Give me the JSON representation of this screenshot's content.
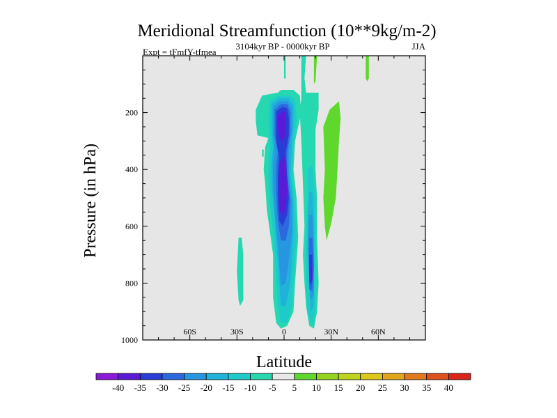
{
  "chart_data": {
    "type": "heatmap",
    "title": "Meridional Streamfunction (10**9kg/m-2)",
    "left_label": "Expt = tFmfY-tfmea",
    "center_label": "3104kyr BP - 0000kyr BP",
    "right_label": "JJA",
    "xlabel": "Latitude",
    "ylabel": "Pressure (in hPa)",
    "x_range": [
      -90,
      90
    ],
    "y_range": [
      0,
      1000
    ],
    "y_inverted": true,
    "x_ticks": [
      {
        "value": -60,
        "label": "60S"
      },
      {
        "value": -30,
        "label": "30S"
      },
      {
        "value": 0,
        "label": "0"
      },
      {
        "value": 30,
        "label": "30N"
      },
      {
        "value": 60,
        "label": "60N"
      }
    ],
    "y_ticks": [
      {
        "value": 200,
        "label": "200"
      },
      {
        "value": 400,
        "label": "400"
      },
      {
        "value": 600,
        "label": "600"
      },
      {
        "value": 800,
        "label": "800"
      },
      {
        "value": 1000,
        "label": "1000"
      }
    ],
    "background_color": "#e6e6e6",
    "regions": [
      {
        "level": "-5",
        "points": [
          [
            -18,
            190
          ],
          [
            -14,
            140
          ],
          [
            -4,
            130
          ],
          [
            -2,
            120
          ],
          [
            6,
            120
          ],
          [
            10,
            140
          ],
          [
            11,
            200
          ],
          [
            7,
            300
          ],
          [
            6,
            400
          ],
          [
            8,
            500
          ],
          [
            9,
            640
          ],
          [
            7,
            800
          ],
          [
            6,
            900
          ],
          [
            2,
            950
          ],
          [
            -2,
            960
          ],
          [
            -5,
            940
          ],
          [
            -7,
            850
          ],
          [
            -7,
            700
          ],
          [
            -9,
            620
          ],
          [
            -11,
            540
          ],
          [
            -12,
            450
          ],
          [
            -13,
            400
          ],
          [
            -12,
            320
          ],
          [
            -10,
            290
          ],
          [
            -17,
            280
          ],
          [
            -18,
            230
          ]
        ]
      },
      {
        "level": "-5",
        "points": [
          [
            0,
            0
          ],
          [
            1,
            0
          ],
          [
            1,
            80
          ],
          [
            0,
            80
          ]
        ]
      },
      {
        "level": "-5",
        "points": [
          [
            11,
            0
          ],
          [
            14,
            0
          ],
          [
            13,
            80
          ],
          [
            14,
            130
          ],
          [
            22,
            130
          ],
          [
            22,
            190
          ],
          [
            20,
            260
          ],
          [
            20,
            400
          ],
          [
            21,
            500
          ],
          [
            21,
            640
          ],
          [
            22,
            800
          ],
          [
            21,
            900
          ],
          [
            19,
            960
          ],
          [
            16,
            950
          ],
          [
            14,
            880
          ],
          [
            13,
            800
          ],
          [
            12,
            700
          ],
          [
            13,
            600
          ],
          [
            12,
            450
          ],
          [
            11,
            300
          ],
          [
            10,
            200
          ],
          [
            11,
            150
          ],
          [
            11,
            80
          ]
        ]
      },
      {
        "level": "-5",
        "points": [
          [
            -29,
            640
          ],
          [
            -27,
            640
          ],
          [
            -26,
            700
          ],
          [
            -26,
            860
          ],
          [
            -28,
            880
          ],
          [
            -29,
            860
          ],
          [
            -30,
            760
          ]
        ]
      },
      {
        "level": "-5",
        "points": [
          [
            -14,
            330
          ],
          [
            -13,
            330
          ],
          [
            -13,
            355
          ],
          [
            -14,
            355
          ]
        ]
      },
      {
        "level": "-10",
        "points": [
          [
            -9,
            160
          ],
          [
            -4,
            140
          ],
          [
            4,
            140
          ],
          [
            7,
            160
          ],
          [
            8,
            220
          ],
          [
            6,
            320
          ],
          [
            5,
            420
          ],
          [
            7,
            520
          ],
          [
            8,
            640
          ],
          [
            6,
            780
          ],
          [
            5,
            880
          ],
          [
            2,
            940
          ],
          [
            -2,
            940
          ],
          [
            -4,
            880
          ],
          [
            -5,
            780
          ],
          [
            -6,
            700
          ],
          [
            -7,
            620
          ],
          [
            -9,
            520
          ],
          [
            -10,
            420
          ],
          [
            -9,
            320
          ],
          [
            -10,
            220
          ]
        ]
      },
      {
        "level": "-10",
        "points": [
          [
            15,
            400
          ],
          [
            18,
            380
          ],
          [
            20,
            500
          ],
          [
            20,
            700
          ],
          [
            20,
            900
          ],
          [
            18,
            950
          ],
          [
            15,
            900
          ],
          [
            14,
            800
          ],
          [
            14,
            650
          ],
          [
            15,
            500
          ]
        ]
      },
      {
        "level": "-15",
        "points": [
          [
            -8,
            170
          ],
          [
            -3,
            150
          ],
          [
            3,
            150
          ],
          [
            6,
            175
          ],
          [
            6,
            240
          ],
          [
            5,
            320
          ],
          [
            4,
            420
          ],
          [
            6,
            520
          ],
          [
            6,
            620
          ],
          [
            5,
            720
          ],
          [
            4,
            800
          ],
          [
            1,
            880
          ],
          [
            -2,
            880
          ],
          [
            -3,
            800
          ],
          [
            -4,
            720
          ],
          [
            -5,
            660
          ],
          [
            -6,
            560
          ],
          [
            -8,
            460
          ],
          [
            -8,
            380
          ],
          [
            -7,
            320
          ],
          [
            -8,
            260
          ]
        ]
      },
      {
        "level": "-15",
        "points": [
          [
            16,
            480
          ],
          [
            18,
            480
          ],
          [
            19,
            600
          ],
          [
            19,
            760
          ],
          [
            19,
            880
          ],
          [
            17,
            900
          ],
          [
            16,
            820
          ],
          [
            15,
            680
          ],
          [
            15,
            560
          ]
        ]
      },
      {
        "level": "-20",
        "points": [
          [
            -7,
            180
          ],
          [
            -3,
            160
          ],
          [
            2,
            160
          ],
          [
            5,
            185
          ],
          [
            5,
            260
          ],
          [
            3,
            340
          ],
          [
            3,
            420
          ],
          [
            5,
            520
          ],
          [
            5,
            620
          ],
          [
            3,
            720
          ],
          [
            1,
            800
          ],
          [
            -2,
            810
          ],
          [
            -3,
            740
          ],
          [
            -4,
            660
          ],
          [
            -6,
            560
          ],
          [
            -7,
            460
          ],
          [
            -7,
            380
          ],
          [
            -6,
            330
          ],
          [
            -7,
            270
          ]
        ]
      },
      {
        "level": "-20",
        "points": [
          [
            16,
            560
          ],
          [
            18,
            560
          ],
          [
            19,
            680
          ],
          [
            19,
            840
          ],
          [
            17,
            860
          ],
          [
            16,
            780
          ],
          [
            15,
            680
          ]
        ]
      },
      {
        "level": "-25",
        "points": [
          [
            -6,
            190
          ],
          [
            -2,
            170
          ],
          [
            2,
            170
          ],
          [
            4,
            200
          ],
          [
            4,
            270
          ],
          [
            2,
            340
          ],
          [
            2,
            420
          ],
          [
            4,
            510
          ],
          [
            3,
            600
          ],
          [
            1,
            650
          ],
          [
            -2,
            650
          ],
          [
            -4,
            580
          ],
          [
            -5,
            480
          ],
          [
            -5,
            390
          ],
          [
            -4,
            340
          ],
          [
            -6,
            280
          ]
        ]
      },
      {
        "level": "-25",
        "points": [
          [
            16,
            640
          ],
          [
            18,
            640
          ],
          [
            19,
            740
          ],
          [
            18,
            830
          ],
          [
            16,
            820
          ],
          [
            16,
            740
          ]
        ]
      },
      {
        "level": "-30",
        "points": [
          [
            -5,
            195
          ],
          [
            -1,
            180
          ],
          [
            2,
            185
          ],
          [
            3,
            220
          ],
          [
            3,
            280
          ],
          [
            1,
            340
          ],
          [
            2,
            420
          ],
          [
            3,
            500
          ],
          [
            2,
            560
          ],
          [
            -1,
            600
          ],
          [
            -3,
            580
          ],
          [
            -4,
            500
          ],
          [
            -4,
            420
          ],
          [
            -3,
            360
          ],
          [
            -5,
            300
          ]
        ]
      },
      {
        "level": "-30",
        "points": [
          [
            16,
            700
          ],
          [
            18,
            700
          ],
          [
            18,
            790
          ],
          [
            17,
            810
          ],
          [
            16,
            790
          ]
        ]
      },
      {
        "level": "-35",
        "points": [
          [
            -4,
            210
          ],
          [
            -1,
            195
          ],
          [
            1,
            200
          ],
          [
            1,
            280
          ],
          [
            -1,
            300
          ],
          [
            -3,
            290
          ],
          [
            -4,
            250
          ]
        ]
      },
      {
        "level": "-35",
        "points": [
          [
            -3,
            380
          ],
          [
            0,
            350
          ],
          [
            1,
            400
          ],
          [
            2,
            470
          ],
          [
            1,
            540
          ],
          [
            -1,
            560
          ],
          [
            -3,
            540
          ],
          [
            -3,
            460
          ]
        ]
      },
      {
        "level": "-35",
        "points": [
          [
            17,
            740
          ],
          [
            18,
            740
          ],
          [
            18,
            790
          ],
          [
            17,
            790
          ]
        ]
      },
      {
        "level": "5",
        "points": [
          [
            25,
            250
          ],
          [
            29,
            190
          ],
          [
            35,
            160
          ],
          [
            36,
            220
          ],
          [
            35,
            300
          ],
          [
            34,
            400
          ],
          [
            33,
            500
          ],
          [
            30,
            590
          ],
          [
            27,
            650
          ],
          [
            26,
            600
          ],
          [
            25,
            500
          ],
          [
            26,
            400
          ]
        ]
      },
      {
        "level": "5",
        "points": [
          [
            52,
            0
          ],
          [
            54,
            0
          ],
          [
            54,
            80
          ],
          [
            53,
            90
          ],
          [
            52,
            80
          ]
        ]
      },
      {
        "level": "5",
        "points": [
          [
            19,
            0
          ],
          [
            21,
            0
          ],
          [
            20,
            90
          ],
          [
            19,
            100
          ]
        ]
      }
    ],
    "colorbar": {
      "levels": [
        "-40",
        "-35",
        "-30",
        "-25",
        "-20",
        "-15",
        "-10",
        "-5",
        "5",
        "10",
        "15",
        "20",
        "25",
        "30",
        "35",
        "40"
      ],
      "colors": [
        "#8a19d8",
        "#5b1bd6",
        "#2b3cd6",
        "#2c69de",
        "#2796e0",
        "#20b2d9",
        "#1fcbca",
        "#25d8b0",
        "#e8e8e8",
        "#5fd82d",
        "#95d41c",
        "#bfd41c",
        "#dcc81c",
        "#e2a51c",
        "#e07a1c",
        "#df501c",
        "#d9251a"
      ]
    }
  }
}
